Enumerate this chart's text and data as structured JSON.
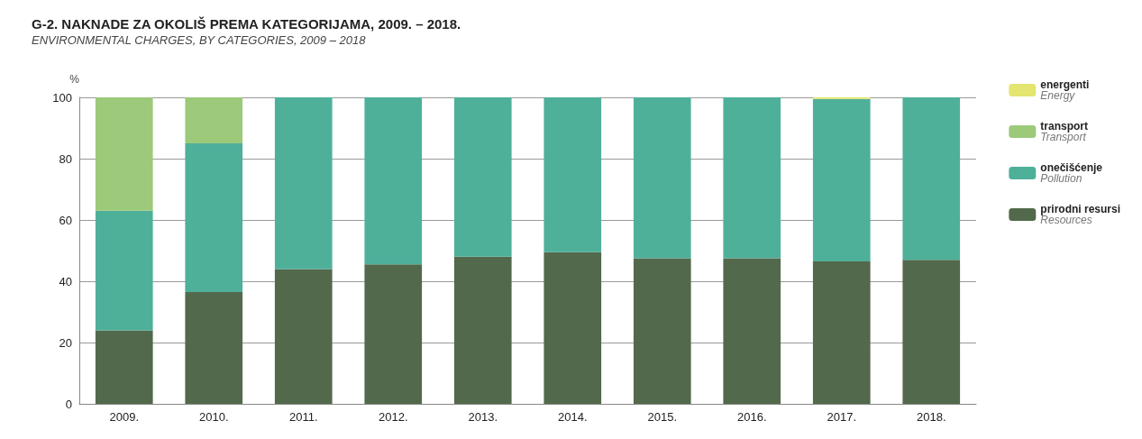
{
  "chart_data": {
    "type": "bar",
    "title": "G-2. NAKNADE ZA OKOLIŠ PREMA KATEGORIJAMA, 2009. – 2018.",
    "subtitle": "ENVIRONMENTAL CHARGES, BY CATEGORIES, 2009 – 2018",
    "ylabel": "%",
    "categories": [
      "2009.",
      "2010.",
      "2011.",
      "2012.",
      "2013.",
      "2014.",
      "2015.",
      "2016.",
      "2017.",
      "2018."
    ],
    "stacked": true,
    "series": [
      {
        "name": "prirodni resursi\nResources",
        "color": "#52694b",
        "values": [
          24,
          36.5,
          44,
          45.5,
          48,
          49.5,
          47.5,
          47.5,
          46.5,
          47
        ]
      },
      {
        "name": "onečišćenje\nPollution",
        "color": "#4fb09a",
        "values": [
          39,
          48.5,
          56,
          54.5,
          52,
          50.5,
          52.5,
          52.5,
          53,
          53
        ]
      },
      {
        "name": "transport\nTransport",
        "color": "#9cc97a",
        "values": [
          37,
          15,
          0,
          0,
          0,
          0,
          0,
          0,
          0,
          0
        ]
      },
      {
        "name": "energenti\nEnergy",
        "color": "#e3e56f",
        "values": [
          0,
          0,
          0,
          0,
          0,
          0,
          0,
          0,
          0.5,
          0
        ]
      }
    ],
    "ylim": [
      0,
      100
    ],
    "yticks": [
      0,
      20,
      40,
      60,
      80,
      100
    ],
    "grid": "y",
    "legend": "right"
  }
}
